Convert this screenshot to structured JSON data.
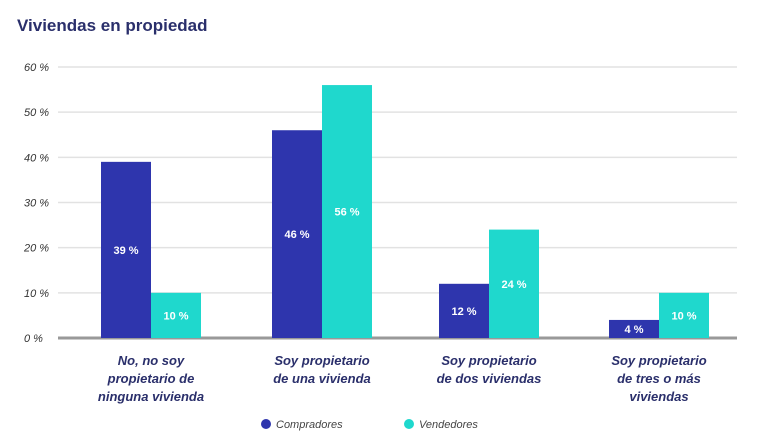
{
  "chart_data": {
    "type": "bar",
    "title": "Viviendas en propiedad",
    "categories": [
      [
        "No, no soy",
        "propietario de",
        "ninguna vivienda"
      ],
      [
        "Soy propietario",
        "de una vivienda"
      ],
      [
        "Soy propietario",
        "de dos viviendas"
      ],
      [
        "Soy propietario",
        "de tres o más",
        "viviendas"
      ]
    ],
    "series": [
      {
        "name": "Compradores",
        "color": "#2e35ad",
        "values": [
          39,
          46,
          12,
          4
        ],
        "labels": [
          "39 %",
          "46 %",
          "12 %",
          "4 %"
        ]
      },
      {
        "name": "Vendedores",
        "color": "#1fd8cd",
        "values": [
          10,
          56,
          24,
          10
        ],
        "labels": [
          "10 %",
          "56 %",
          "24 %",
          "10 %"
        ]
      }
    ],
    "yticks": [
      "0 %",
      "10 %",
      "20 %",
      "30 %",
      "40 %",
      "50 %",
      "60 %"
    ],
    "ylim": [
      0,
      60
    ],
    "grid": true,
    "legend_position": "bottom",
    "xlabel": "",
    "ylabel": ""
  }
}
